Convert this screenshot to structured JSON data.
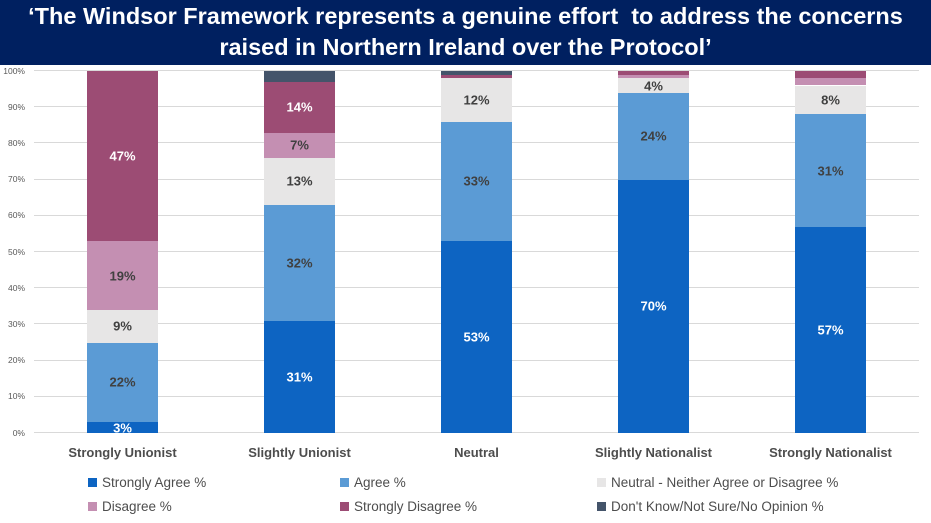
{
  "title": {
    "line1": "‘The Windsor Framework represents a genuine effort  to address the concerns",
    "line2": "raised in Northern Ireland over the Protocol’",
    "background_color": "#002060",
    "text_color": "#FFFFFF"
  },
  "chart_data": {
    "type": "bar",
    "subtype": "100_percent_stacked_column",
    "title": "‘The Windsor Framework represents a genuine effort  to address the concerns raised in Northern Ireland over the Protocol’",
    "categories": [
      "Strongly Unionist",
      "Slightly Unionist",
      "Neutral",
      "Slightly Nationalist",
      "Strongly Nationalist"
    ],
    "series": [
      {
        "name": "Strongly Agree %",
        "color": "#0D64C2",
        "label_color": "#FFFFFF",
        "values": [
          3,
          31,
          53,
          70,
          57
        ],
        "labels": [
          "3%",
          "31%",
          "53%",
          "70%",
          "57%"
        ]
      },
      {
        "name": "Agree %",
        "color": "#5B9BD5",
        "label_color": "#404040",
        "values": [
          22,
          32,
          33,
          24,
          31
        ],
        "labels": [
          "22%",
          "32%",
          "33%",
          "24%",
          "31%"
        ]
      },
      {
        "name": "Neutral - Neither Agree or Disagree %",
        "color": "#E7E6E6",
        "label_color": "#404040",
        "values": [
          9,
          13,
          12,
          4,
          8
        ],
        "labels": [
          "9%",
          "13%",
          "12%",
          "4%",
          "8%"
        ]
      },
      {
        "name": "Disagree %",
        "color": "#C48FB2",
        "label_color": "#404040",
        "values": [
          19,
          7,
          0,
          1,
          2
        ],
        "labels": [
          "19%",
          "7%",
          "",
          "",
          ""
        ]
      },
      {
        "name": "Strongly Disagree %",
        "color": "#9C4C74",
        "label_color": "#FFFFFF",
        "values": [
          47,
          14,
          1,
          1,
          2
        ],
        "labels": [
          "47%",
          "14%",
          "",
          "",
          ""
        ]
      },
      {
        "name": "Don't Know/Not Sure/No Opinion %",
        "color": "#44546A",
        "label_color": "#FFFFFF",
        "values": [
          0,
          3,
          1,
          0,
          0
        ],
        "labels": [
          "",
          "",
          "",
          "",
          ""
        ]
      }
    ],
    "y_axis": {
      "ticks": [
        "0%",
        "10%",
        "20%",
        "30%",
        "40%",
        "50%",
        "60%",
        "70%",
        "80%",
        "90%",
        "100%"
      ],
      "min": 0,
      "max": 100,
      "gridlines": true,
      "gridline_color": "#D9D9D9",
      "tick_color": "#595959"
    },
    "legend": {
      "position": "bottom",
      "rows": 2,
      "columns": 3,
      "entries": [
        "Strongly Agree %",
        "Agree %",
        "Neutral - Neither Agree or Disagree %",
        "Disagree %",
        "Strongly Disagree %",
        "Don't Know/Not Sure/No Opinion %"
      ]
    }
  }
}
